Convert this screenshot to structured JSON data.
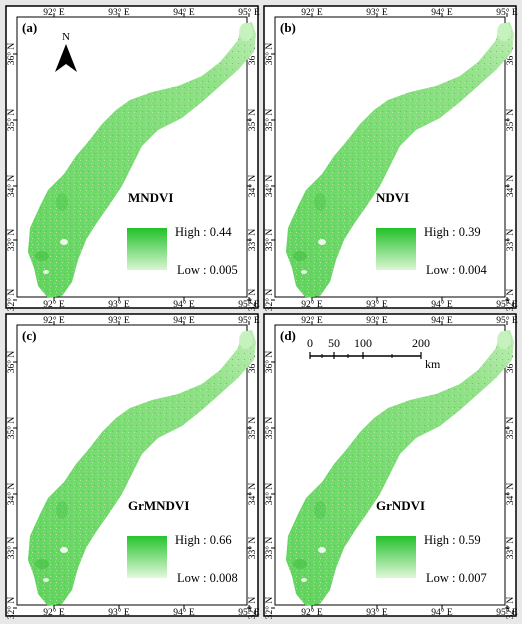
{
  "panels": [
    {
      "tag": "(a)",
      "index_name": "MNDVI",
      "legend_high": "High : 0.44",
      "legend_low": "Low : 0.005",
      "legend_colors": [
        "#22c12a",
        "#d9f5d2"
      ],
      "extras": [
        "north-arrow"
      ]
    },
    {
      "tag": "(b)",
      "index_name": "NDVI",
      "legend_high": "High : 0.39",
      "legend_low": "Low : 0.004",
      "legend_colors": [
        "#22c12a",
        "#dbf6d3"
      ],
      "extras": []
    },
    {
      "tag": "(c)",
      "index_name": "GrMNDVI",
      "legend_high": "High : 0.66",
      "legend_low": "Low : 0.008",
      "legend_colors": [
        "#26c42e",
        "#e3f8dc"
      ],
      "extras": []
    },
    {
      "tag": "(d)",
      "index_name": "GrNDVI",
      "legend_high": "High : 0.59",
      "legend_low": "Low : 0.007",
      "legend_colors": [
        "#24c12c",
        "#e0f7d9"
      ],
      "extras": [
        "scale-bar"
      ]
    }
  ],
  "axes": {
    "lon_labels": [
      "92° E",
      "93° E",
      "94° E",
      "95° E"
    ],
    "lat_labels": [
      "36° N",
      "35° N",
      "34° N",
      "33° N",
      "32° N"
    ]
  },
  "north_arrow": {
    "label": "N",
    "icon": "north-arrow-icon"
  },
  "scale_bar": {
    "tick_labels": [
      "0",
      "50",
      "100",
      "200"
    ],
    "unit": "km"
  },
  "colors": {
    "vegetation_base": "#6fd86a",
    "vegetation_dark": "#3fbf3f",
    "vegetation_light": "#b8ecaf",
    "frame": "#000000",
    "gap": "#e8e8e8"
  }
}
